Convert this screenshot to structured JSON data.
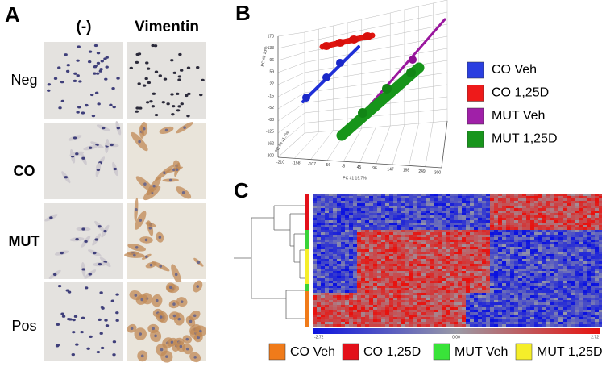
{
  "panel_a": {
    "label": "A",
    "columns": [
      "(-)",
      "Vimentin"
    ],
    "rows": [
      "Neg",
      "CO",
      "MUT",
      "Pos"
    ]
  },
  "panel_b": {
    "label": "B",
    "x_axis_label": "PC #1 19.7%",
    "y_axis_label": "PC #2 13%",
    "z_axis_label": "PC #3 11.7%",
    "x_ticks": [
      -210,
      -158,
      -107,
      -56,
      -5,
      45,
      96,
      147,
      198,
      249,
      300
    ],
    "y_ticks": [
      170,
      133,
      96,
      59,
      22,
      -15,
      -52,
      -88,
      -125,
      -162,
      -200
    ],
    "legend": [
      "CO Veh",
      "CO 1,25D",
      "MUT Veh",
      "MUT 1,25D"
    ]
  },
  "panel_c": {
    "label": "C",
    "colorbar_labels": [
      "-2.72",
      "0.00",
      "2.72"
    ],
    "legend": [
      "CO Veh",
      "CO 1,25D",
      "MUT Veh",
      "MUT 1,25D"
    ]
  }
}
